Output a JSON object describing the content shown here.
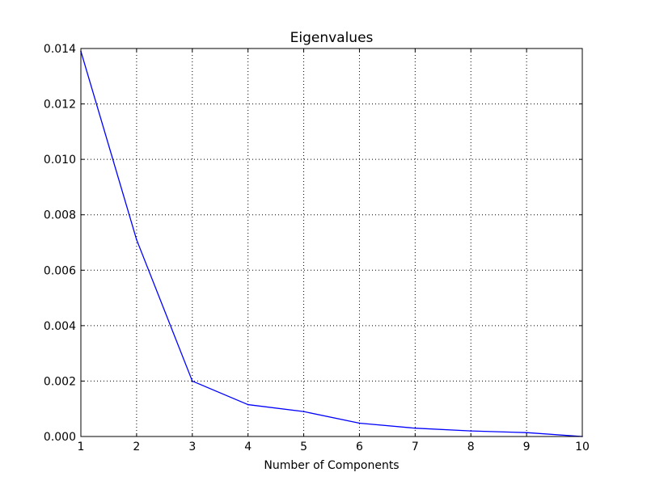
{
  "chart_data": {
    "type": "line",
    "title": "Eigenvalues",
    "xlabel": "Number of Components",
    "ylabel": "",
    "x": [
      1,
      2,
      3,
      4,
      5,
      6,
      7,
      8,
      9,
      10
    ],
    "series": [
      {
        "values": [
          0.0139,
          0.0071,
          0.002,
          0.00115,
          0.0009,
          0.00048,
          0.0003,
          0.0002,
          0.00014,
          0.0
        ]
      }
    ],
    "xlim": [
      1,
      10
    ],
    "ylim": [
      0,
      0.014
    ],
    "xticks": [
      1,
      2,
      3,
      4,
      5,
      6,
      7,
      8,
      9,
      10
    ],
    "yticks": [
      0.0,
      0.002,
      0.004,
      0.006,
      0.008,
      0.01,
      0.012,
      0.014
    ],
    "xtick_labels": [
      "1",
      "2",
      "3",
      "4",
      "5",
      "6",
      "7",
      "8",
      "9",
      "10"
    ],
    "ytick_labels": [
      "0.000",
      "0.002",
      "0.004",
      "0.006",
      "0.008",
      "0.010",
      "0.012",
      "0.014"
    ],
    "grid": true,
    "line_color": "#0000ff"
  }
}
